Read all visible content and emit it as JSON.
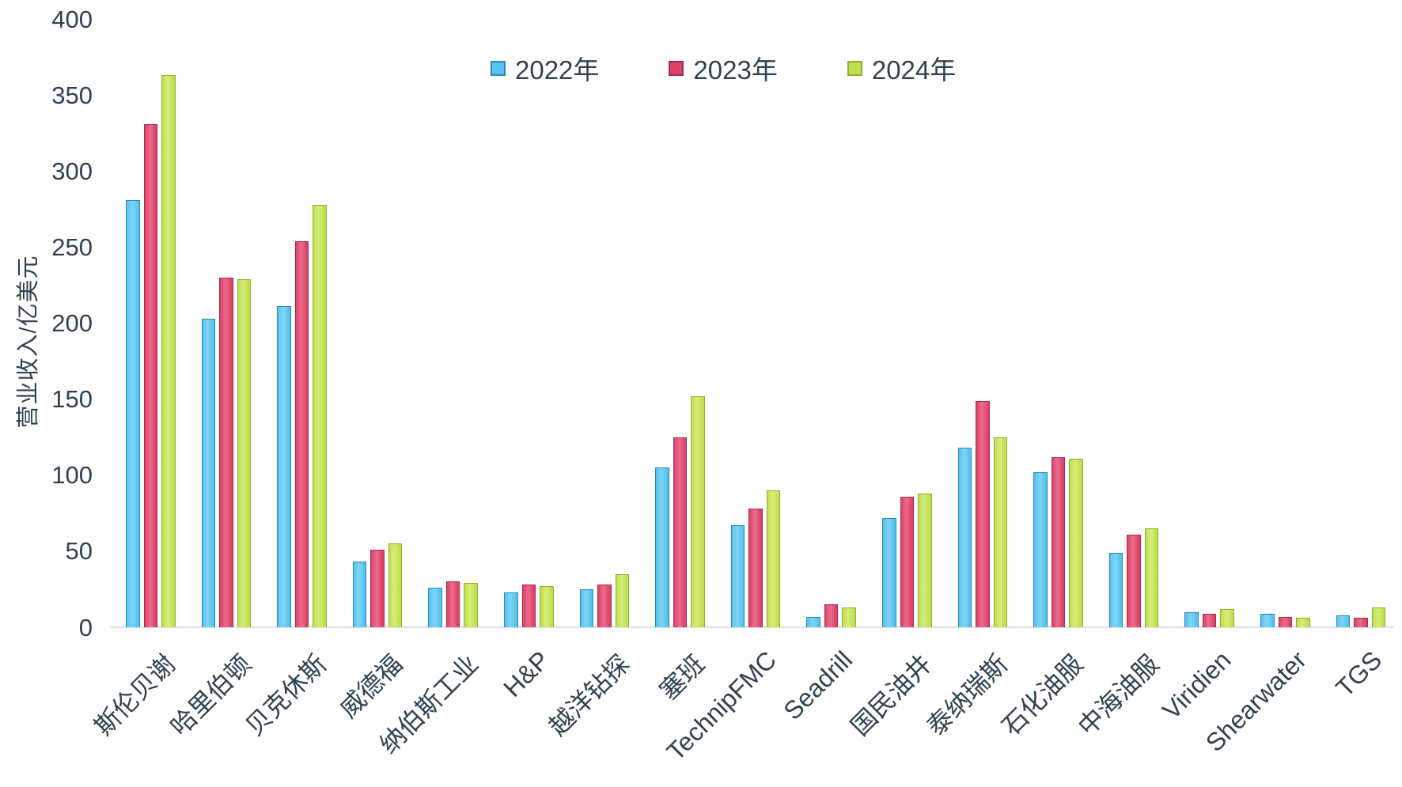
{
  "chart_data": {
    "type": "bar",
    "title": "",
    "ylabel": "营业收入/亿美元",
    "xlabel": "",
    "ylim": [
      0,
      400
    ],
    "ytick_step": 50,
    "grid": false,
    "legend_position": "top-center",
    "background": "#FFFFFF",
    "text_color": "#2F4254",
    "axis_line_color": "#DDE2E6",
    "categories": [
      "斯伦贝谢",
      "哈里伯顿",
      "贝克休斯",
      "威德福",
      "纳伯斯工业",
      "H&P",
      "越洋钻探",
      "塞班",
      "TechnipFMC",
      "Seadrill",
      "国民油井",
      "泰纳瑞斯",
      "石化油服",
      "中海油服",
      "Viridien",
      "Shearwater",
      "TGS"
    ],
    "series": [
      {
        "name": "2022年",
        "color": "#56C2EE",
        "color_light": "#7FD5F7",
        "border": "#3087B6",
        "values": [
          281,
          203,
          211,
          43,
          26,
          23,
          25,
          105,
          67,
          7,
          72,
          118,
          102,
          49,
          10,
          9,
          8
        ]
      },
      {
        "name": "2023年",
        "color": "#DE4169",
        "color_light": "#EA6C8C",
        "border": "#A22C53",
        "values": [
          331,
          230,
          254,
          51,
          30,
          28,
          28,
          125,
          78,
          15,
          86,
          149,
          112,
          61,
          9,
          7,
          6
        ]
      },
      {
        "name": "2024年",
        "color": "#C0DF4E",
        "color_light": "#D5ED78",
        "border": "#8FAE35",
        "values": [
          363,
          229,
          278,
          55,
          29,
          27,
          35,
          152,
          90,
          13,
          88,
          125,
          111,
          65,
          12,
          6,
          13
        ]
      }
    ]
  }
}
